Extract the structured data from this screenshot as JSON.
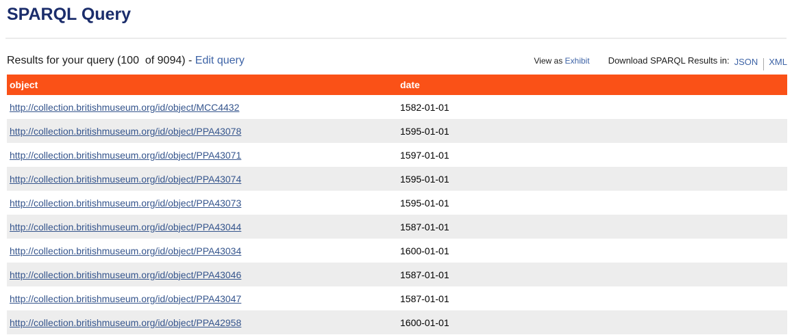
{
  "page": {
    "title": "SPARQL Query"
  },
  "results_bar": {
    "summary": "Results for your query (100  of 9094) - ",
    "edit_query_label": "Edit query",
    "view_as_label": "View as ",
    "exhibit_label": "Exhibit",
    "download_label": "Download SPARQL Results in:",
    "json_label": "JSON",
    "xml_label": "XML"
  },
  "table": {
    "columns": {
      "object": "object",
      "date": "date"
    },
    "rows": [
      {
        "object": "http://collection.britishmuseum.org/id/object/MCC4432",
        "date": "1582-01-01"
      },
      {
        "object": "http://collection.britishmuseum.org/id/object/PPA43078",
        "date": "1595-01-01"
      },
      {
        "object": "http://collection.britishmuseum.org/id/object/PPA43071",
        "date": "1597-01-01"
      },
      {
        "object": "http://collection.britishmuseum.org/id/object/PPA43074",
        "date": "1595-01-01"
      },
      {
        "object": "http://collection.britishmuseum.org/id/object/PPA43073",
        "date": "1595-01-01"
      },
      {
        "object": "http://collection.britishmuseum.org/id/object/PPA43044",
        "date": "1587-01-01"
      },
      {
        "object": "http://collection.britishmuseum.org/id/object/PPA43034",
        "date": "1600-01-01"
      },
      {
        "object": "http://collection.britishmuseum.org/id/object/PPA43046",
        "date": "1587-01-01"
      },
      {
        "object": "http://collection.britishmuseum.org/id/object/PPA43047",
        "date": "1587-01-01"
      },
      {
        "object": "http://collection.britishmuseum.org/id/object/PPA42958",
        "date": "1600-01-01"
      }
    ]
  },
  "colors": {
    "header_bg": "#FA5117",
    "row_alt_bg": "#EDEDED",
    "title_color": "#1B2D6B",
    "table_link": "#34548C",
    "action_link": "#3D63A6",
    "hr_color": "#EBEBEB"
  }
}
